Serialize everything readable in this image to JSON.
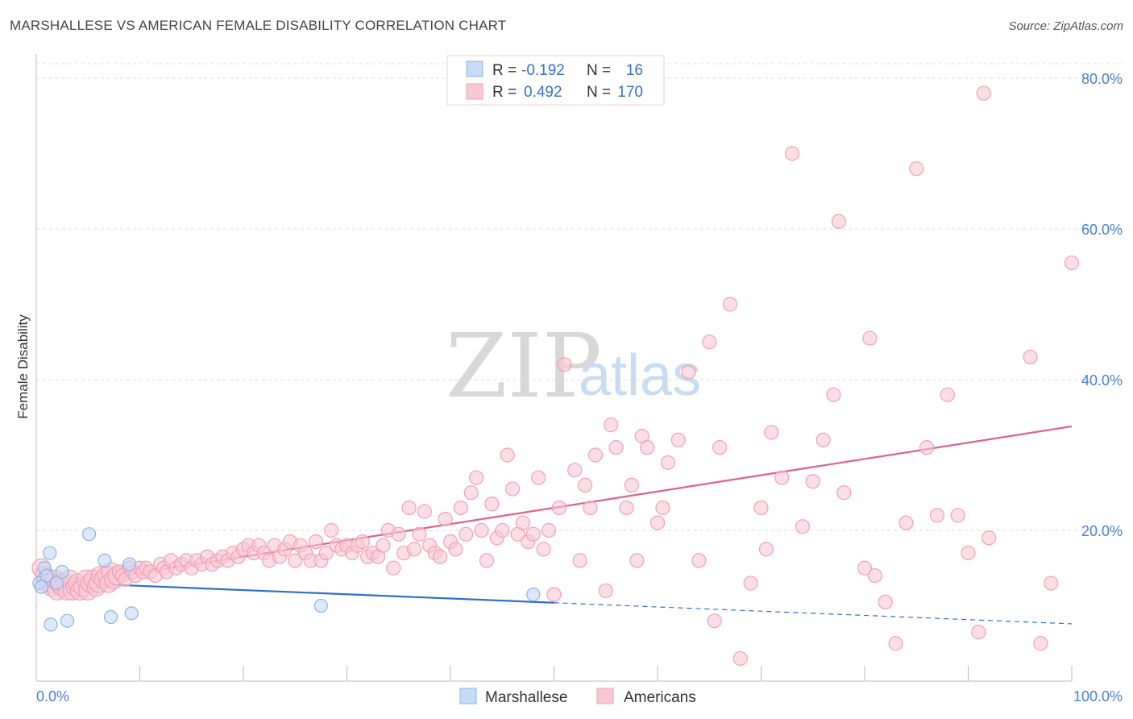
{
  "title": "MARSHALLESE VS AMERICAN FEMALE DISABILITY CORRELATION CHART",
  "source": "Source: ZipAtlas.com",
  "watermark": {
    "zip": "ZIP",
    "atlas": "atlas"
  },
  "colors": {
    "marshallese": "#8ab4e8",
    "marshallese_fill": "#c6dbf5",
    "marshallese_line": "#2f6fca",
    "americans": "#f0a0b8",
    "americans_fill": "#f8c8d6",
    "americans_line": "#e0608a",
    "grid": "#dcdcdc",
    "tick_label": "#4a7fd0"
  },
  "legend": {
    "rows": [
      {
        "r_label": "R = ",
        "r_value": "-0.192",
        "n_label": "N = ",
        "n_value": "16"
      },
      {
        "r_label": "R = ",
        "r_value": "0.492",
        "n_label": "N = ",
        "n_value": "170"
      }
    ]
  },
  "bottom_legend": [
    "Marshallese",
    "Americans"
  ],
  "chart_data": {
    "type": "scatter",
    "xlabel": "",
    "ylabel": "Female Disability",
    "xlim": [
      0,
      100
    ],
    "ylim": [
      0,
      80
    ],
    "x_tick_labels": [
      "0.0%",
      "100.0%"
    ],
    "y_ticks": [
      20,
      40,
      60,
      80
    ],
    "y_tick_labels": [
      "20.0%",
      "40.0%",
      "60.0%",
      "80.0%"
    ],
    "grid": true,
    "series": [
      {
        "name": "Marshallese",
        "points": [
          [
            0.3,
            13
          ],
          [
            0.5,
            12.5
          ],
          [
            0.8,
            15
          ],
          [
            1.0,
            14
          ],
          [
            1.3,
            17
          ],
          [
            1.4,
            7.5
          ],
          [
            2.0,
            13
          ],
          [
            2.5,
            14.5
          ],
          [
            3.0,
            8
          ],
          [
            5.1,
            19.5
          ],
          [
            6.6,
            16
          ],
          [
            7.2,
            8.5
          ],
          [
            9.0,
            15.5
          ],
          [
            9.2,
            9
          ],
          [
            27.5,
            10
          ],
          [
            48.0,
            11.5
          ]
        ],
        "trend": {
          "x": [
            0,
            50
          ],
          "y": [
            13.2,
            10.4
          ]
        },
        "trend_dashed": {
          "x": [
            50,
            100
          ],
          "y": [
            10.4,
            7.6
          ]
        }
      },
      {
        "name": "Americans",
        "points": [
          [
            0.5,
            15
          ],
          [
            0.8,
            14
          ],
          [
            1,
            13.5
          ],
          [
            1.2,
            13
          ],
          [
            1.5,
            12.5
          ],
          [
            1.8,
            13.5
          ],
          [
            2,
            12
          ],
          [
            2.2,
            13
          ],
          [
            2.5,
            12.5
          ],
          [
            2.8,
            13
          ],
          [
            3,
            12
          ],
          [
            3.2,
            13.5
          ],
          [
            3.5,
            12
          ],
          [
            3.8,
            12.5
          ],
          [
            4,
            13
          ],
          [
            4.2,
            12
          ],
          [
            4.5,
            12.5
          ],
          [
            4.8,
            13.5
          ],
          [
            5,
            12
          ],
          [
            5.2,
            13
          ],
          [
            5.5,
            13.5
          ],
          [
            5.8,
            12.5
          ],
          [
            6,
            13
          ],
          [
            6.2,
            14
          ],
          [
            6.5,
            13.5
          ],
          [
            6.8,
            14
          ],
          [
            7,
            13
          ],
          [
            7.2,
            14.5
          ],
          [
            7.5,
            13.5
          ],
          [
            7.8,
            14
          ],
          [
            8,
            14.5
          ],
          [
            8.3,
            14
          ],
          [
            8.6,
            13.5
          ],
          [
            9,
            15
          ],
          [
            9.3,
            14.5
          ],
          [
            9.6,
            14
          ],
          [
            10,
            15
          ],
          [
            10.3,
            14.5
          ],
          [
            10.6,
            15
          ],
          [
            11,
            14.5
          ],
          [
            11.5,
            14
          ],
          [
            12,
            15.5
          ],
          [
            12.3,
            15
          ],
          [
            12.6,
            14.5
          ],
          [
            13,
            16
          ],
          [
            13.5,
            15
          ],
          [
            14,
            15.5
          ],
          [
            14.5,
            16
          ],
          [
            15,
            15
          ],
          [
            15.5,
            16
          ],
          [
            16,
            15.5
          ],
          [
            16.5,
            16.5
          ],
          [
            17,
            15.5
          ],
          [
            17.5,
            16
          ],
          [
            18,
            16.5
          ],
          [
            18.5,
            16
          ],
          [
            19,
            17
          ],
          [
            19.5,
            16.5
          ],
          [
            20,
            17.5
          ],
          [
            20.5,
            18
          ],
          [
            21,
            17
          ],
          [
            21.5,
            18
          ],
          [
            22,
            17
          ],
          [
            22.5,
            16
          ],
          [
            23,
            18
          ],
          [
            23.5,
            16.5
          ],
          [
            24,
            17.5
          ],
          [
            24.5,
            18.5
          ],
          [
            25,
            16
          ],
          [
            25.5,
            18
          ],
          [
            26,
            17
          ],
          [
            26.5,
            16
          ],
          [
            27,
            18.5
          ],
          [
            27.5,
            16
          ],
          [
            28,
            17
          ],
          [
            28.5,
            20
          ],
          [
            29,
            18
          ],
          [
            29.5,
            17.5
          ],
          [
            30,
            18
          ],
          [
            30.5,
            17
          ],
          [
            31,
            18
          ],
          [
            31.5,
            18.5
          ],
          [
            32,
            16.5
          ],
          [
            32.5,
            17
          ],
          [
            33,
            16.5
          ],
          [
            33.5,
            18
          ],
          [
            34,
            20
          ],
          [
            34.5,
            15
          ],
          [
            35,
            19.5
          ],
          [
            35.5,
            17
          ],
          [
            36,
            23
          ],
          [
            36.5,
            17.5
          ],
          [
            37,
            19.5
          ],
          [
            37.5,
            22.5
          ],
          [
            38,
            18
          ],
          [
            38.5,
            17
          ],
          [
            39,
            16.5
          ],
          [
            39.5,
            21.5
          ],
          [
            40,
            18.5
          ],
          [
            40.5,
            17.5
          ],
          [
            41,
            23
          ],
          [
            41.5,
            19.5
          ],
          [
            42,
            25
          ],
          [
            42.5,
            27
          ],
          [
            43,
            20
          ],
          [
            43.5,
            16
          ],
          [
            44,
            23.5
          ],
          [
            44.5,
            19
          ],
          [
            45,
            20
          ],
          [
            45.5,
            30
          ],
          [
            46,
            25.5
          ],
          [
            46.5,
            19.5
          ],
          [
            47,
            21
          ],
          [
            47.5,
            18.5
          ],
          [
            48,
            19.5
          ],
          [
            48.5,
            27
          ],
          [
            49,
            17.5
          ],
          [
            49.5,
            20
          ],
          [
            50,
            11.5
          ],
          [
            50.5,
            23
          ],
          [
            51,
            42
          ],
          [
            52,
            28
          ],
          [
            52.5,
            16
          ],
          [
            53,
            26
          ],
          [
            53.5,
            23
          ],
          [
            54,
            30
          ],
          [
            55,
            12
          ],
          [
            55.5,
            34
          ],
          [
            56,
            31
          ],
          [
            57,
            23
          ],
          [
            57.5,
            26
          ],
          [
            58,
            16
          ],
          [
            58.5,
            32.5
          ],
          [
            59,
            31
          ],
          [
            60,
            21
          ],
          [
            60.5,
            23
          ],
          [
            61,
            29
          ],
          [
            62,
            32
          ],
          [
            63,
            41
          ],
          [
            64,
            16
          ],
          [
            65,
            45
          ],
          [
            65.5,
            8
          ],
          [
            66,
            31
          ],
          [
            67,
            50
          ],
          [
            68,
            3
          ],
          [
            69,
            13
          ],
          [
            70,
            23
          ],
          [
            70.5,
            17.5
          ],
          [
            71,
            33
          ],
          [
            72,
            27
          ],
          [
            73,
            70
          ],
          [
            74,
            20.5
          ],
          [
            75,
            26.5
          ],
          [
            76,
            32
          ],
          [
            77,
            38
          ],
          [
            77.5,
            61
          ],
          [
            78,
            25
          ],
          [
            80,
            15
          ],
          [
            80.5,
            45.5
          ],
          [
            81,
            14
          ],
          [
            82,
            10.5
          ],
          [
            83,
            5
          ],
          [
            84,
            21
          ],
          [
            85,
            68
          ],
          [
            86,
            31
          ],
          [
            87,
            22
          ],
          [
            88,
            38
          ],
          [
            89,
            22
          ],
          [
            90,
            17
          ],
          [
            91,
            6.5
          ],
          [
            91.5,
            78
          ],
          [
            92,
            19
          ],
          [
            96,
            43
          ],
          [
            97,
            5
          ],
          [
            98,
            13
          ],
          [
            100,
            55.5
          ]
        ],
        "trend": {
          "x": [
            0,
            100
          ],
          "y": [
            12.2,
            33.8
          ]
        }
      }
    ]
  }
}
